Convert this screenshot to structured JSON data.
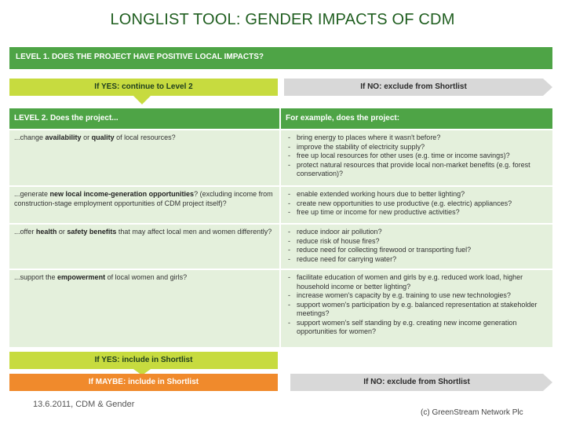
{
  "title": "LONGLIST TOOL: GENDER IMPACTS OF CDM",
  "level1": "LEVEL 1. DOES THE PROJECT HAVE POSITIVE LOCAL IMPACTS?",
  "yes1": "If YES: continue to Level 2",
  "no1": "If NO: exclude from Shortlist",
  "level2_header": "LEVEL 2. Does the project...",
  "example_header": "For example, does the project:",
  "rows": [
    {
      "pre": "...change ",
      "bold": "availability",
      "mid": " or ",
      "bold2": "quality",
      "post": " of local resources?",
      "examples": [
        "bring energy to places where it wasn't before?",
        "improve the stability of electricity supply?",
        "free up local resources for other uses (e.g. time or income savings)?",
        "protect natural resources that provide local non-market benefits (e.g. forest conservation)?"
      ]
    },
    {
      "pre": "...generate ",
      "bold": "new local income-generation opportunities",
      "post": "? (excluding income from construction-stage employment opportunities of CDM project itself)?",
      "examples": [
        "enable extended working hours due to better lighting?",
        "create new opportunities to use productive (e.g. electric) appliances?",
        "free up time or income for new productive activities?"
      ]
    },
    {
      "pre": "...offer ",
      "bold": "health",
      "mid": " or ",
      "bold2": "safety benefits",
      "post": " that may affect local men and women differently?",
      "examples": [
        "reduce indoor air pollution?",
        "reduce risk of house fires?",
        "reduce need for collecting firewood or transporting fuel?",
        "reduce need for carrying water?"
      ]
    },
    {
      "pre": "...support the ",
      "bold": "empowerment",
      "post": " of local women and girls?",
      "examples": [
        "facilitate education of women and girls by e.g. reduced work load, higher household income or better lighting?",
        "increase women's capacity by e.g. training to use new technologies?",
        "support women's participation by e.g. balanced representation at stakeholder meetings?",
        "support women's self standing by e.g. creating new income generation opportunities for women?"
      ]
    }
  ],
  "yes2": "If YES: include in Shortlist",
  "maybe": "If MAYBE: include in Shortlist",
  "no2": "If NO: exclude from Shortlist",
  "footer_date": "13.6.2011, CDM & Gender",
  "footer_copyright": "(c) GreenStream Network Plc",
  "colors": {
    "green": "#4ea446",
    "lime": "#c7db3f",
    "orange": "#f08a2c",
    "grey": "#d8d8d8",
    "cell": "#e4f0dc",
    "title": "#1f5e1f"
  }
}
